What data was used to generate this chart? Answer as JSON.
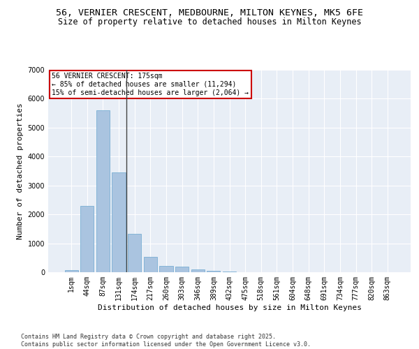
{
  "title_line1": "56, VERNIER CRESCENT, MEDBOURNE, MILTON KEYNES, MK5 6FE",
  "title_line2": "Size of property relative to detached houses in Milton Keynes",
  "xlabel": "Distribution of detached houses by size in Milton Keynes",
  "ylabel": "Number of detached properties",
  "categories": [
    "1sqm",
    "44sqm",
    "87sqm",
    "131sqm",
    "174sqm",
    "217sqm",
    "260sqm",
    "303sqm",
    "346sqm",
    "389sqm",
    "432sqm",
    "475sqm",
    "518sqm",
    "561sqm",
    "604sqm",
    "648sqm",
    "691sqm",
    "734sqm",
    "777sqm",
    "820sqm",
    "863sqm"
  ],
  "values": [
    80,
    2300,
    5600,
    3450,
    1320,
    520,
    215,
    185,
    95,
    55,
    30,
    10,
    5,
    3,
    2,
    1,
    1,
    0,
    0,
    0,
    0
  ],
  "bar_color": "#aac4e0",
  "bar_edgecolor": "#7aafd4",
  "vline_x_index": 3.5,
  "vline_color": "#444444",
  "annotation_line1": "56 VERNIER CRESCENT: 175sqm",
  "annotation_line2": "← 85% of detached houses are smaller (11,294)",
  "annotation_line3": "15% of semi-detached houses are larger (2,064) →",
  "box_edgecolor": "#cc0000",
  "ylim": [
    0,
    7000
  ],
  "yticks": [
    0,
    1000,
    2000,
    3000,
    4000,
    5000,
    6000,
    7000
  ],
  "background_color": "#e8eef6",
  "grid_color": "#ffffff",
  "footer_text": "Contains HM Land Registry data © Crown copyright and database right 2025.\nContains public sector information licensed under the Open Government Licence v3.0.",
  "title_fontsize": 9.5,
  "subtitle_fontsize": 8.5,
  "axis_label_fontsize": 8,
  "tick_fontsize": 7,
  "annotation_fontsize": 7,
  "footer_fontsize": 6
}
